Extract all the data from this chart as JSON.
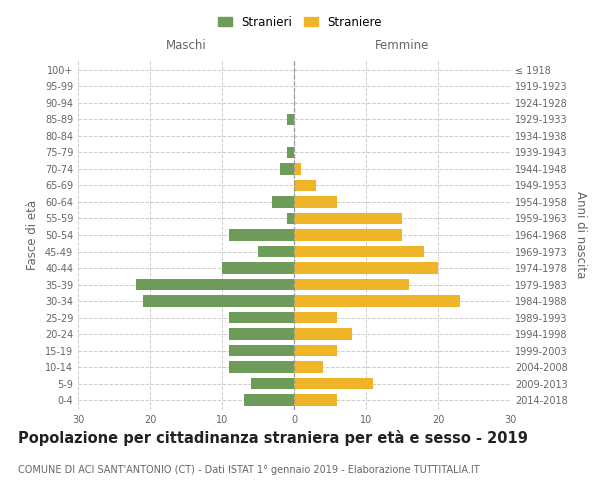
{
  "age_groups": [
    "0-4",
    "5-9",
    "10-14",
    "15-19",
    "20-24",
    "25-29",
    "30-34",
    "35-39",
    "40-44",
    "45-49",
    "50-54",
    "55-59",
    "60-64",
    "65-69",
    "70-74",
    "75-79",
    "80-84",
    "85-89",
    "90-94",
    "95-99",
    "100+"
  ],
  "birth_years": [
    "2014-2018",
    "2009-2013",
    "2004-2008",
    "1999-2003",
    "1994-1998",
    "1989-1993",
    "1984-1988",
    "1979-1983",
    "1974-1978",
    "1969-1973",
    "1964-1968",
    "1959-1963",
    "1954-1958",
    "1949-1953",
    "1944-1948",
    "1939-1943",
    "1934-1938",
    "1929-1933",
    "1924-1928",
    "1919-1923",
    "≤ 1918"
  ],
  "maschi": [
    7,
    6,
    9,
    9,
    9,
    9,
    21,
    22,
    10,
    5,
    9,
    1,
    3,
    0,
    2,
    1,
    0,
    1,
    0,
    0,
    0
  ],
  "femmine": [
    6,
    11,
    4,
    6,
    8,
    6,
    23,
    16,
    20,
    18,
    15,
    15,
    6,
    3,
    1,
    0,
    0,
    0,
    0,
    0,
    0
  ],
  "maschi_color": "#6d9b5a",
  "femmine_color": "#f0b429",
  "title": "Popolazione per cittadinanza straniera per età e sesso - 2019",
  "subtitle": "COMUNE DI ACI SANT'ANTONIO (CT) - Dati ISTAT 1° gennaio 2019 - Elaborazione TUTTITALIA.IT",
  "xlabel_left": "Maschi",
  "xlabel_right": "Femmine",
  "ylabel_left": "Fasce di età",
  "ylabel_right": "Anni di nascita",
  "xlim": 30,
  "legend_stranieri": "Stranieri",
  "legend_straniere": "Straniere",
  "bg_color": "#ffffff",
  "grid_color": "#cccccc",
  "bar_height": 0.7,
  "label_color": "#666666",
  "title_fontsize": 10.5,
  "subtitle_fontsize": 7.0,
  "axis_label_fontsize": 8.5,
  "tick_fontsize": 7.0
}
